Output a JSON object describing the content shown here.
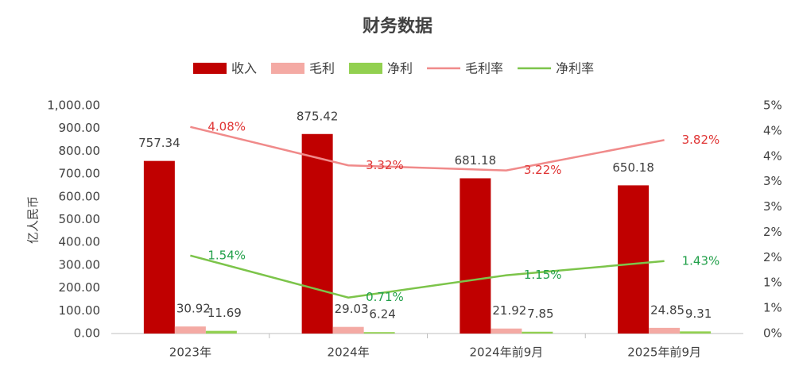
{
  "chart_data": {
    "type": "bar",
    "title": "财务数据",
    "y_label": "亿人民币",
    "categories": [
      "2023年",
      "2024年",
      "2024年前9月",
      "2025年前9月"
    ],
    "series": [
      {
        "name": "收入",
        "type": "bar",
        "color": "#c00000",
        "values": [
          757.34,
          875.42,
          681.18,
          650.18
        ]
      },
      {
        "name": "毛利",
        "type": "bar",
        "color": "#f4aaa4",
        "values": [
          30.92,
          29.03,
          21.92,
          24.85
        ]
      },
      {
        "name": "净利",
        "type": "bar",
        "color": "#92d050",
        "values": [
          11.69,
          6.24,
          7.85,
          9.31
        ]
      },
      {
        "name": "毛利率",
        "type": "line",
        "axis": "y2",
        "color": "#f08a8a",
        "label_color": "#e03535",
        "values": [
          4.08,
          3.32,
          3.22,
          3.82
        ],
        "value_labels": [
          "4.08%",
          "3.32%",
          "3.22%",
          "3.82%"
        ]
      },
      {
        "name": "净利率",
        "type": "line",
        "axis": "y2",
        "color": "#7cc44a",
        "label_color": "#22a04a",
        "values": [
          1.54,
          0.71,
          1.15,
          1.43
        ],
        "value_labels": [
          "1.54%",
          "0.71%",
          "1.15%",
          "1.43%"
        ]
      }
    ],
    "ylim": [
      0,
      1000
    ],
    "yticks": [
      {
        "value": 0,
        "label": "0.00"
      },
      {
        "value": 100,
        "label": "100.00"
      },
      {
        "value": 200,
        "label": "200.00"
      },
      {
        "value": 300,
        "label": "300.00"
      },
      {
        "value": 400,
        "label": "400.00"
      },
      {
        "value": 500,
        "label": "500.00"
      },
      {
        "value": 600,
        "label": "600.00"
      },
      {
        "value": 700,
        "label": "700.00"
      },
      {
        "value": 800,
        "label": "800.00"
      },
      {
        "value": 900,
        "label": "900.00"
      },
      {
        "value": 1000,
        "label": "1,000.00"
      }
    ],
    "y2lim": [
      0,
      4.5
    ],
    "y2ticks": [
      {
        "value": 0,
        "label": "0%"
      },
      {
        "value": 0.5,
        "label": "1%"
      },
      {
        "value": 1,
        "label": "1%"
      },
      {
        "value": 1.5,
        "label": "2%"
      },
      {
        "value": 2,
        "label": "2%"
      },
      {
        "value": 2.5,
        "label": "3%"
      },
      {
        "value": 3,
        "label": "3%"
      },
      {
        "value": 3.5,
        "label": "4%"
      },
      {
        "value": 4,
        "label": "4%"
      },
      {
        "value": 4.5,
        "label": "5%"
      }
    ],
    "legend": "top"
  }
}
